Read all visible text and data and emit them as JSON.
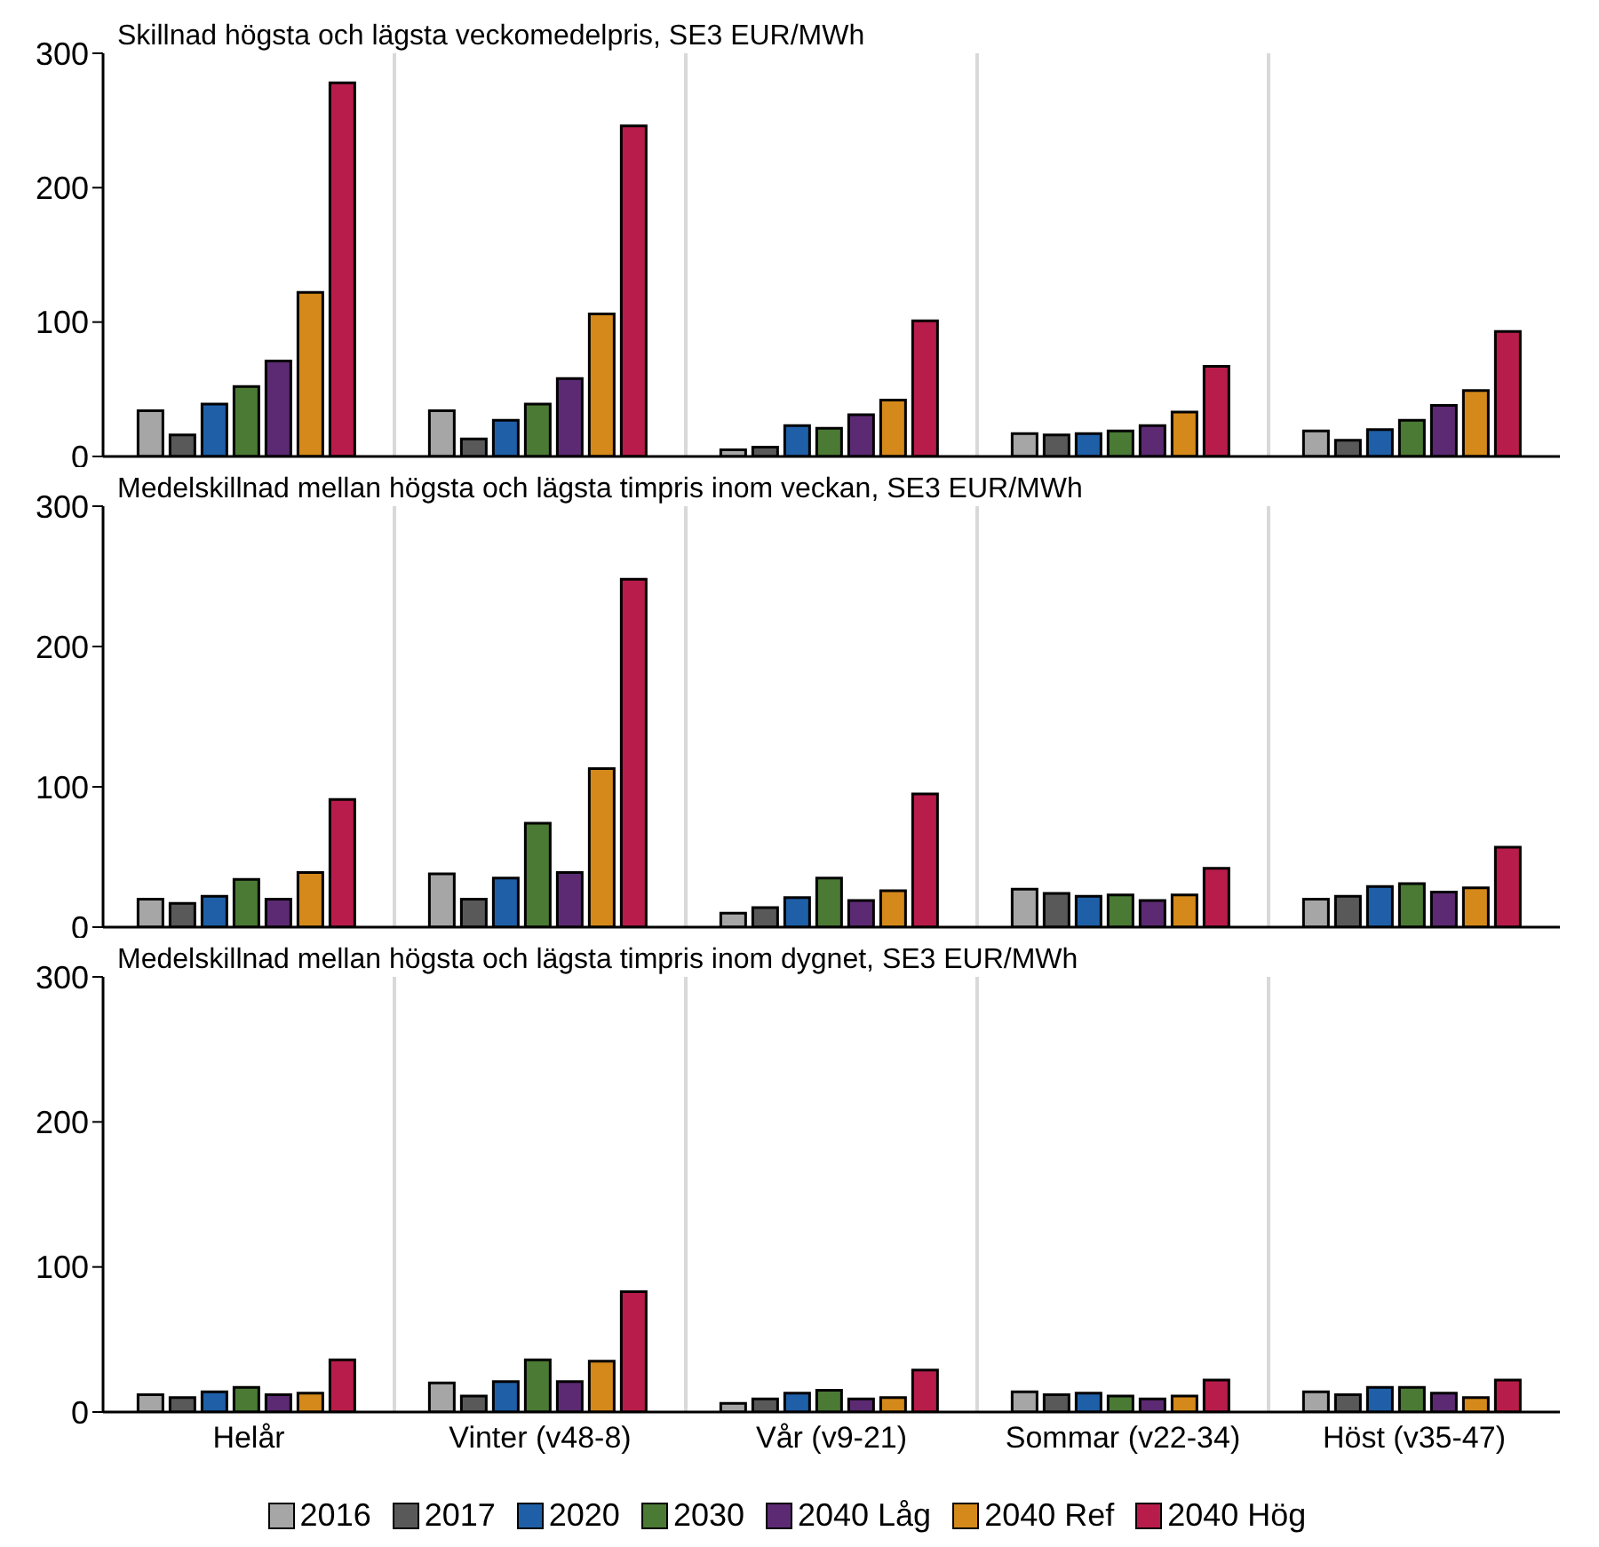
{
  "chart_data": [
    {
      "type": "bar",
      "title": "Skillnad högsta och lägsta veckomedelpris, SE3 EUR/MWh",
      "categories": [
        null,
        null,
        null,
        null,
        null
      ],
      "series": [
        {
          "color": "#a6a6a6",
          "values": [
            34,
            34,
            5,
            17,
            19
          ]
        },
        {
          "color": "#595959",
          "values": [
            16,
            13,
            7,
            16,
            12
          ]
        },
        {
          "color": "#1f5fa8",
          "values": [
            39,
            27,
            23,
            17,
            20
          ]
        },
        {
          "color": "#4a7a34",
          "values": [
            52,
            39,
            21,
            19,
            27
          ]
        },
        {
          "color": "#5c2a72",
          "values": [
            71,
            58,
            31,
            23,
            38
          ]
        },
        {
          "color": "#d4891a",
          "values": [
            122,
            106,
            42,
            33,
            49
          ]
        },
        {
          "color": "#b81c4a",
          "values": [
            278,
            246,
            101,
            67,
            93
          ]
        }
      ],
      "ylim": [
        0,
        300
      ],
      "yticks": [
        0,
        100,
        200,
        300
      ],
      "grid": "x",
      "tick_labels": "y"
    },
    {
      "type": "bar",
      "title": "Medelskillnad mellan högsta och lägsta timpris inom veckan, SE3 EUR/MWh",
      "categories": [
        null,
        null,
        null,
        null,
        null
      ],
      "series": [
        {
          "color": "#a6a6a6",
          "values": [
            20,
            38,
            10,
            27,
            20
          ]
        },
        {
          "color": "#595959",
          "values": [
            17,
            20,
            14,
            24,
            22
          ]
        },
        {
          "color": "#1f5fa8",
          "values": [
            22,
            35,
            21,
            22,
            29
          ]
        },
        {
          "color": "#4a7a34",
          "values": [
            34,
            74,
            35,
            23,
            31
          ]
        },
        {
          "color": "#5c2a72",
          "values": [
            20,
            39,
            19,
            19,
            25
          ]
        },
        {
          "color": "#d4891a",
          "values": [
            39,
            113,
            26,
            23,
            28
          ]
        },
        {
          "color": "#b81c4a",
          "values": [
            91,
            248,
            95,
            42,
            57
          ]
        }
      ],
      "ylim": [
        0,
        300
      ],
      "yticks": [
        0,
        100,
        200,
        300
      ],
      "grid": "x",
      "tick_labels": "y"
    },
    {
      "type": "bar",
      "title": "Medelskillnad mellan högsta och lägsta timpris inom dygnet, SE3 EUR/MWh",
      "categories": [
        "Helår",
        "Vinter (v48-8)",
        "Vår (v9-21)",
        "Sommar (v22-34)",
        "Höst (v35-47)"
      ],
      "series": [
        {
          "name": "2016",
          "color": "#a6a6a6",
          "values": [
            12,
            20,
            6,
            14,
            14
          ]
        },
        {
          "name": "2017",
          "color": "#595959",
          "values": [
            10,
            11,
            9,
            12,
            12
          ]
        },
        {
          "name": "2020",
          "color": "#1f5fa8",
          "values": [
            14,
            21,
            13,
            13,
            17
          ]
        },
        {
          "name": "2030",
          "color": "#4a7a34",
          "values": [
            17,
            36,
            15,
            11,
            17
          ]
        },
        {
          "name": "2040 Låg",
          "color": "#5c2a72",
          "values": [
            12,
            21,
            9,
            9,
            13
          ]
        },
        {
          "name": "2040 Ref",
          "color": "#d4891a",
          "values": [
            13,
            35,
            10,
            11,
            10
          ]
        },
        {
          "name": "2040 Hög",
          "color": "#b81c4a",
          "values": [
            36,
            83,
            29,
            22,
            22
          ]
        }
      ],
      "ylim": [
        0,
        300
      ],
      "yticks": [
        0,
        100,
        200,
        300
      ],
      "grid": "x",
      "legend": "bottom"
    }
  ]
}
